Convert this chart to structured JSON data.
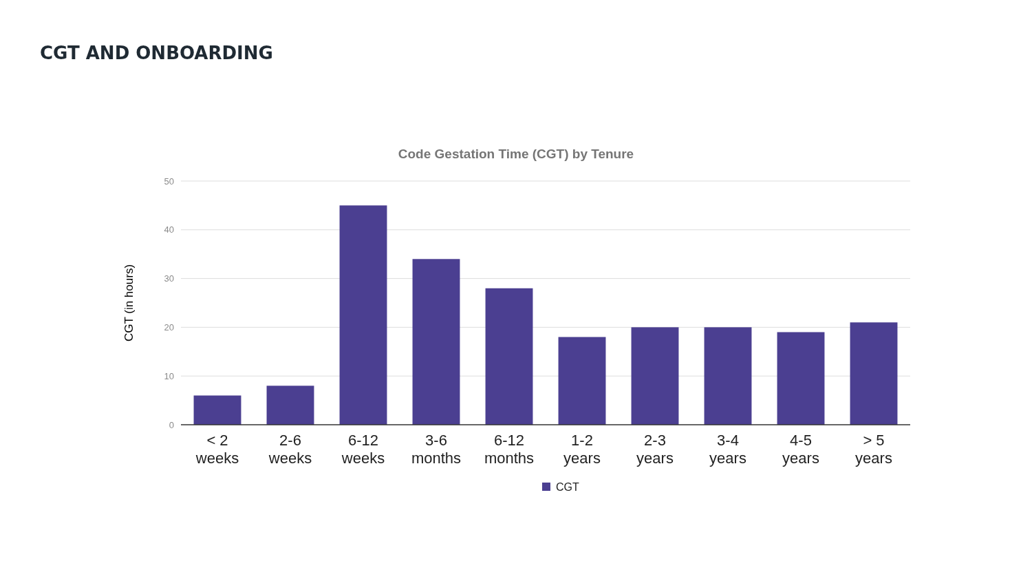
{
  "chart_data": {
    "type": "bar",
    "title": "CGT AND ONBOARDING",
    "subtitle": "Code Gestation Time (CGT) by Tenure",
    "ylabel": "CGT (in hours)",
    "categories": [
      "< 2 weeks",
      "2-6 weeks",
      "6-12 weeks",
      "3-6 months",
      "6-12 months",
      "1-2 years",
      "2-3 years",
      "3-4 years",
      "4-5 years",
      "> 5 years"
    ],
    "series": [
      {
        "name": "CGT",
        "color": "#4b3f91",
        "values": [
          6,
          8,
          45,
          34,
          28,
          18,
          20,
          20,
          19,
          21
        ]
      }
    ],
    "ylim": [
      0,
      50
    ],
    "yticks": [
      0,
      10,
      20,
      30,
      40,
      50
    ],
    "grid": "y",
    "legend": "bottom"
  }
}
